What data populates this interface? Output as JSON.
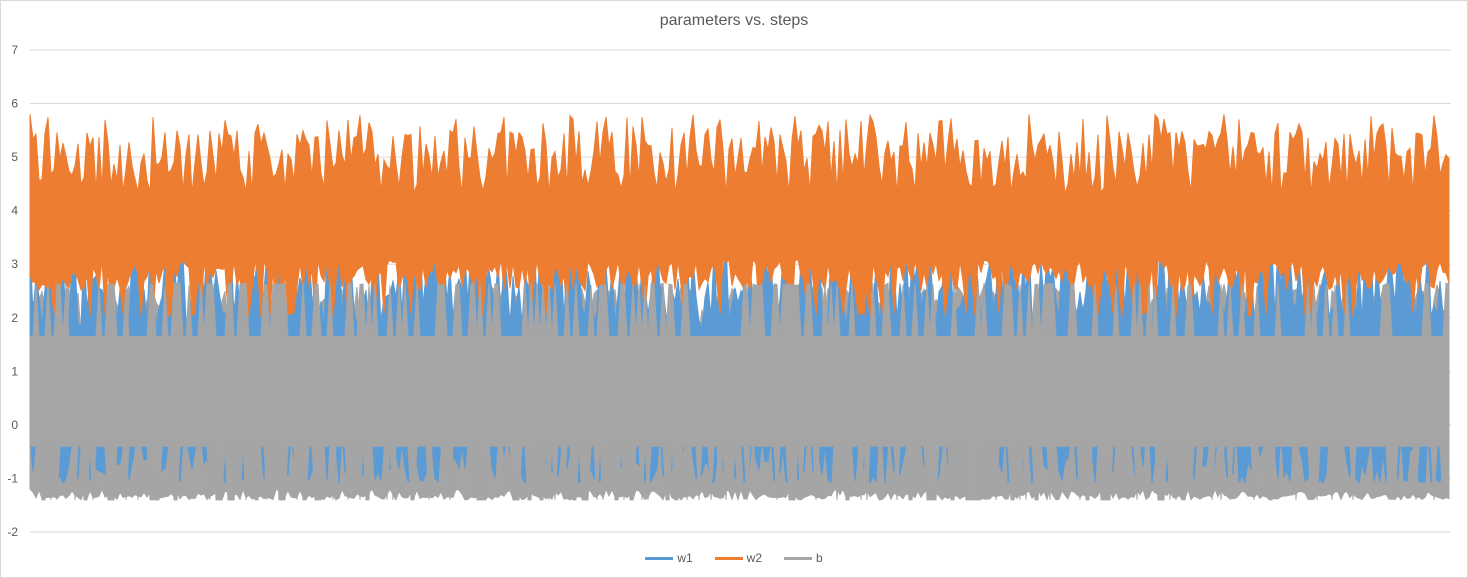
{
  "chart_data": {
    "type": "line",
    "title": "parameters vs. steps",
    "xlabel": "",
    "ylabel": "",
    "ylim": [
      -2,
      7
    ],
    "yticks": [
      7,
      6,
      5,
      4,
      3,
      2,
      1,
      0,
      -1,
      -2
    ],
    "grid": true,
    "legend": "bottom",
    "series": [
      {
        "name": "w1",
        "color": "#5b9bd5",
        "typical_range": [
          -1.0,
          3.3
        ],
        "max": 3.6,
        "min": -1.1
      },
      {
        "name": "w2",
        "color": "#ed7d31",
        "typical_range": [
          2.5,
          5.5
        ],
        "max": 5.8,
        "min": 2.0
      },
      {
        "name": "b",
        "color": "#a5a5a5",
        "typical_range": [
          -1.4,
          2.6
        ],
        "max": 2.65,
        "min": -1.4
      }
    ]
  }
}
